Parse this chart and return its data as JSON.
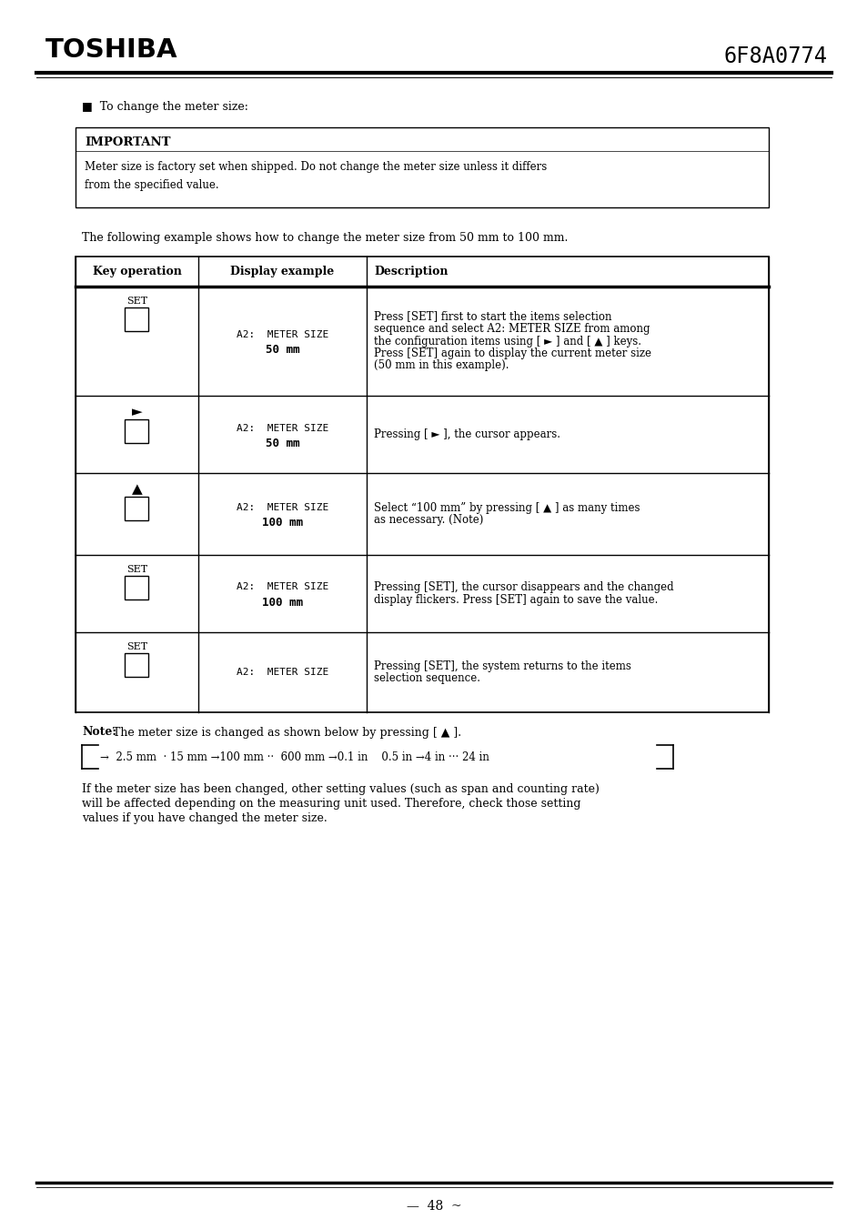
{
  "bg_color": "#ffffff",
  "title_left": "TOSHIBA",
  "title_right": "6F8A0774",
  "bullet_text": "■  To change the meter size:",
  "important_box": {
    "title": "IMPORTANT",
    "body_line1": "Meter size is factory set when shipped. Do not change the meter size unless it differs",
    "body_line2": "from the specified value."
  },
  "intro_text": "The following example shows how to change the meter size from 50 mm to 100 mm.",
  "table_headers": [
    "Key operation",
    "Display example",
    "Description"
  ],
  "table_rows": [
    {
      "key_label": "SET",
      "display_line1": "A2:  METER SIZE",
      "display_line2": "50 mm",
      "display_bold": true,
      "desc_lines": [
        {
          "text": "Press [SET] first to start the items selection",
          "bold": false
        },
        {
          "text": "sequence and select A2: METER SIZE from among",
          "bold_part": "A2: METER SIZE"
        },
        {
          "text": "the configuration items using [ ► ] and [ ▲ ] keys.",
          "bold": false
        },
        {
          "text": "Press [SET] again to display the current meter size",
          "bold": false
        },
        {
          "text": "(50 mm in this example).",
          "bold": false
        }
      ]
    },
    {
      "key_label": "►",
      "display_line1": "A2:  METER SIZE",
      "display_line2": "50 mm",
      "display_bold": true,
      "display_underline": true,
      "desc_lines": [
        {
          "text": "Pressing [ ► ], the cursor appears.",
          "bold": false
        }
      ]
    },
    {
      "key_label": "▲",
      "display_line1": "A2:  METER SIZE",
      "display_line2": "100 mm",
      "display_bold": true,
      "display_underline": true,
      "desc_lines": [
        {
          "text": "Select “100 mm” by pressing [ ▲ ] as many times",
          "bold": false
        },
        {
          "text": "as necessary. (Note)",
          "bold": false
        }
      ]
    },
    {
      "key_label": "SET",
      "display_line1": "A2:  METER SIZE",
      "display_line2": "100 mm",
      "display_bold": true,
      "desc_lines": [
        {
          "text": "Pressing [SET], the cursor disappears and the changed",
          "bold": false
        },
        {
          "text": "display flickers. Press [SET] again to save the value.",
          "bold": false
        }
      ]
    },
    {
      "key_label": "SET",
      "display_line1": "A2:  METER SIZE",
      "display_line2": "",
      "display_bold": false,
      "desc_lines": [
        {
          "text": "Pressing [SET], the system returns to the items",
          "bold": false
        },
        {
          "text": "selection sequence.",
          "bold": false
        }
      ]
    }
  ],
  "note_label": "Note:",
  "note_text": " The meter size is changed as shown below by pressing [ ▲ ].",
  "cycle_text": "→  2.5 mm  · 15 mm →100 mm ··  600 mm →0.1 in    0.5 in →4 in ··· 24 in",
  "footer_text1": "If the meter size has been changed, other setting values (such as span and counting rate)",
  "footer_text2": "will be affected depending on the measuring unit used. Therefore, check those setting",
  "footer_text3": "values if you have changed the meter size.",
  "page_number": "48"
}
